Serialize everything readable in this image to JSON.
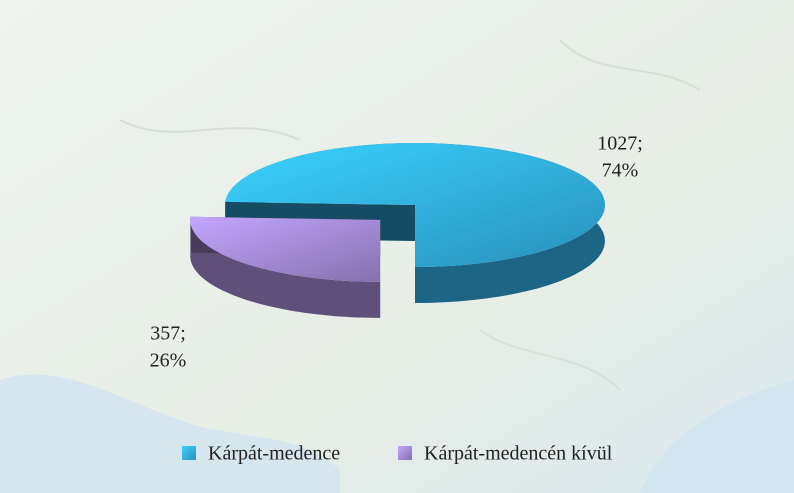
{
  "chart_data": {
    "type": "pie3d",
    "categories": [
      "Kárpát-medence",
      "Kárpát-medencén kívül"
    ],
    "values": [
      1027,
      357
    ],
    "value_labels": [
      [
        "1027;",
        "74%"
      ],
      [
        "357;",
        "26%"
      ]
    ],
    "colors": [
      "#2fa9dc",
      "#9d85cc"
    ],
    "legend": "bottom"
  }
}
